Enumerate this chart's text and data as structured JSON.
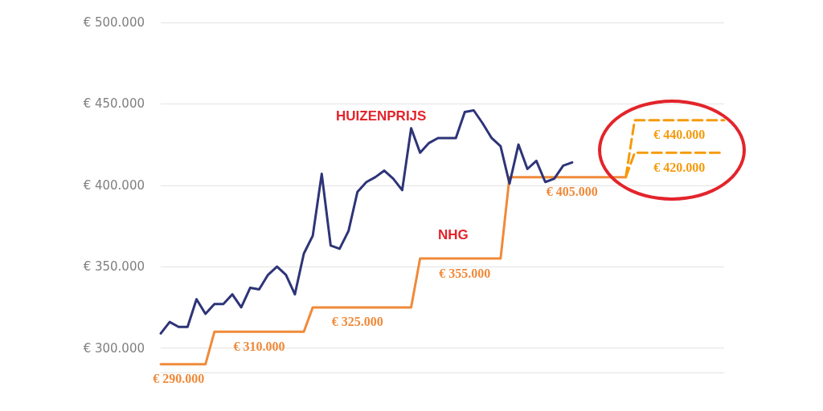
{
  "chart_data": {
    "type": "line",
    "categories": [
      null,
      null,
      null,
      null,
      null,
      null,
      null,
      null,
      null,
      null,
      null,
      null,
      null,
      null,
      null,
      null,
      null,
      null,
      null,
      null,
      null,
      null,
      null,
      null,
      null,
      null,
      null,
      null,
      null,
      null,
      null,
      null,
      null,
      null,
      null,
      null,
      null,
      null,
      null,
      null,
      null,
      null,
      null,
      null,
      null,
      null,
      null,
      null,
      null,
      null,
      null,
      null,
      null,
      null,
      null,
      null,
      null,
      null,
      null,
      null,
      null,
      null,
      null,
      null
    ],
    "series": [
      {
        "name": "HUIZENPRIJS",
        "color": "#2e3478",
        "values": [
          309000,
          316000,
          313000,
          313000,
          330000,
          321000,
          327000,
          327000,
          333000,
          325000,
          337000,
          336000,
          345000,
          350000,
          345000,
          333000,
          358000,
          369000,
          407000,
          363000,
          361000,
          372000,
          396000,
          402000,
          405000,
          409000,
          404000,
          397000,
          435000,
          420000,
          426000,
          429000,
          429000,
          429000,
          445000,
          446000,
          438000,
          429000,
          424000,
          401000,
          425000,
          410000,
          415000,
          402000,
          404000,
          412000,
          414000,
          null,
          null,
          null,
          null,
          null,
          null,
          null,
          null,
          null,
          null,
          null,
          null,
          null,
          null,
          null,
          null,
          null
        ]
      },
      {
        "name": "NHG",
        "color": "#f08a3a",
        "values": [
          290000,
          290000,
          290000,
          290000,
          290000,
          290000,
          310000,
          310000,
          310000,
          310000,
          310000,
          310000,
          310000,
          310000,
          310000,
          310000,
          310000,
          325000,
          325000,
          325000,
          325000,
          325000,
          325000,
          325000,
          325000,
          325000,
          325000,
          325000,
          325000,
          355000,
          355000,
          355000,
          355000,
          355000,
          355000,
          355000,
          355000,
          355000,
          355000,
          405000,
          405000,
          405000,
          405000,
          405000,
          405000,
          405000,
          405000,
          405000,
          405000,
          405000,
          405000,
          405000,
          405000,
          null,
          null,
          null,
          null,
          null,
          null,
          null,
          null,
          null,
          null,
          null
        ],
        "value_labels": [
          null,
          null,
          "€ 290.000",
          null,
          null,
          null,
          null,
          null,
          null,
          null,
          null,
          "€ 310.000",
          null,
          null,
          null,
          null,
          null,
          null,
          null,
          null,
          null,
          null,
          "€ 325.000",
          null,
          null,
          null,
          null,
          null,
          null,
          null,
          null,
          null,
          null,
          null,
          "€ 355.000",
          null,
          null,
          null,
          null,
          null,
          null,
          null,
          null,
          null,
          null,
          null,
          "€ 405.000",
          null,
          null,
          null,
          null,
          null,
          null,
          null,
          null,
          null,
          null,
          null,
          null,
          null,
          null,
          null,
          null,
          null
        ]
      },
      {
        "color": "#f59a0c",
        "line_style": "dashed",
        "values": [
          null,
          null,
          null,
          null,
          null,
          null,
          null,
          null,
          null,
          null,
          null,
          null,
          null,
          null,
          null,
          null,
          null,
          null,
          null,
          null,
          null,
          null,
          null,
          null,
          null,
          null,
          null,
          null,
          null,
          null,
          null,
          null,
          null,
          null,
          null,
          null,
          null,
          null,
          null,
          null,
          null,
          null,
          null,
          null,
          null,
          null,
          null,
          null,
          null,
          null,
          null,
          null,
          405000,
          440000,
          440000,
          440000,
          440000,
          440000,
          440000,
          440000,
          440000,
          440000,
          440000,
          440000
        ],
        "value_labels": [
          null,
          null,
          null,
          null,
          null,
          null,
          null,
          null,
          null,
          null,
          null,
          null,
          null,
          null,
          null,
          null,
          null,
          null,
          null,
          null,
          null,
          null,
          null,
          null,
          null,
          null,
          null,
          null,
          null,
          null,
          null,
          null,
          null,
          null,
          null,
          null,
          null,
          null,
          null,
          null,
          null,
          null,
          null,
          null,
          null,
          null,
          null,
          null,
          null,
          null,
          null,
          null,
          null,
          null,
          null,
          null,
          null,
          null,
          "€ 440.000",
          null,
          null,
          null,
          null,
          null
        ]
      },
      {
        "color": "#f59a0c",
        "line_style": "dashed",
        "values": [
          null,
          null,
          null,
          null,
          null,
          null,
          null,
          null,
          null,
          null,
          null,
          null,
          null,
          null,
          null,
          null,
          null,
          null,
          null,
          null,
          null,
          null,
          null,
          null,
          null,
          null,
          null,
          null,
          null,
          null,
          null,
          null,
          null,
          null,
          null,
          null,
          null,
          null,
          null,
          null,
          null,
          null,
          null,
          null,
          null,
          null,
          null,
          null,
          null,
          null,
          null,
          null,
          405000,
          420000,
          420000,
          420000,
          420000,
          420000,
          420000,
          420000,
          420000,
          420000,
          420000,
          420000
        ],
        "value_labels": [
          null,
          null,
          null,
          null,
          null,
          null,
          null,
          null,
          null,
          null,
          null,
          null,
          null,
          null,
          null,
          null,
          null,
          null,
          null,
          null,
          null,
          null,
          null,
          null,
          null,
          null,
          null,
          null,
          null,
          null,
          null,
          null,
          null,
          null,
          null,
          null,
          null,
          null,
          null,
          null,
          null,
          null,
          null,
          null,
          null,
          null,
          null,
          null,
          null,
          null,
          null,
          null,
          null,
          null,
          null,
          null,
          null,
          null,
          "€ 420.000",
          null,
          null,
          null,
          null,
          null
        ]
      }
    ],
    "ylim": [
      285000,
      500000
    ],
    "yticks": [
      {
        "value": 300000,
        "label": "€ 300.000"
      },
      {
        "value": 350000,
        "label": "€ 350.000"
      },
      {
        "value": 400000,
        "label": "€ 400.000"
      },
      {
        "value": 450000,
        "label": "€ 450.000"
      },
      {
        "value": 500000,
        "label": "€ 500.000"
      }
    ],
    "grid": "y",
    "tick_labels": "y",
    "marker": "none",
    "line_style": "solid",
    "legend": false
  }
}
